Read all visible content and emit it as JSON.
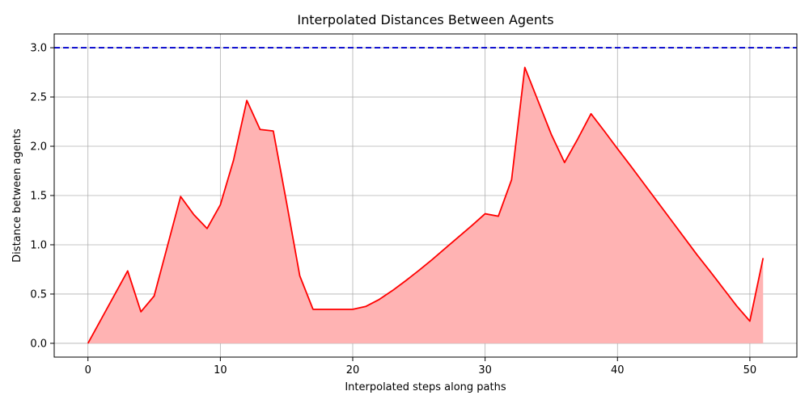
{
  "chart_data": {
    "type": "area",
    "title": "Interpolated Distances Between Agents",
    "xlabel": "Interpolated steps along paths",
    "ylabel": "Distance between agents",
    "xlim": [
      -2.55,
      53.55
    ],
    "ylim": [
      -0.14,
      3.14
    ],
    "xticks": [
      0,
      10,
      20,
      30,
      40,
      50
    ],
    "yticks": [
      0.0,
      0.5,
      1.0,
      1.5,
      2.0,
      2.5,
      3.0
    ],
    "ytick_labels": [
      "0.0",
      "0.5",
      "1.0",
      "1.5",
      "2.0",
      "2.5",
      "3.0"
    ],
    "grid": true,
    "reference_line": {
      "y": 3.0,
      "style": "dashed",
      "color": "#0000cc"
    },
    "line_color": "#ff0000",
    "fill_color": "#ffb3b3",
    "series": [
      {
        "x": [
          0,
          1,
          2,
          3,
          4,
          5,
          6,
          7,
          8,
          9,
          10,
          11,
          12,
          13,
          14,
          15,
          16,
          17,
          18,
          19,
          20,
          21,
          22,
          23,
          24,
          25,
          26,
          27,
          28,
          29,
          30,
          31,
          32,
          33,
          34,
          35,
          36,
          37,
          38,
          39,
          40,
          41,
          42,
          43,
          44,
          45,
          46,
          47,
          48,
          49,
          50,
          51
        ],
        "values": [
          0.0,
          0.245,
          0.49,
          0.735,
          0.32,
          0.48,
          0.985,
          1.49,
          1.305,
          1.165,
          1.405,
          1.86,
          2.465,
          2.17,
          2.155,
          1.43,
          0.685,
          0.345,
          0.345,
          0.345,
          0.345,
          0.375,
          0.445,
          0.535,
          0.635,
          0.74,
          0.85,
          0.965,
          1.08,
          1.195,
          1.315,
          1.29,
          1.66,
          2.8,
          2.46,
          2.12,
          1.835,
          2.075,
          2.33,
          2.155,
          1.975,
          1.8,
          1.62,
          1.44,
          1.26,
          1.08,
          0.9,
          0.73,
          0.555,
          0.38,
          0.225,
          0.865
        ]
      }
    ]
  }
}
